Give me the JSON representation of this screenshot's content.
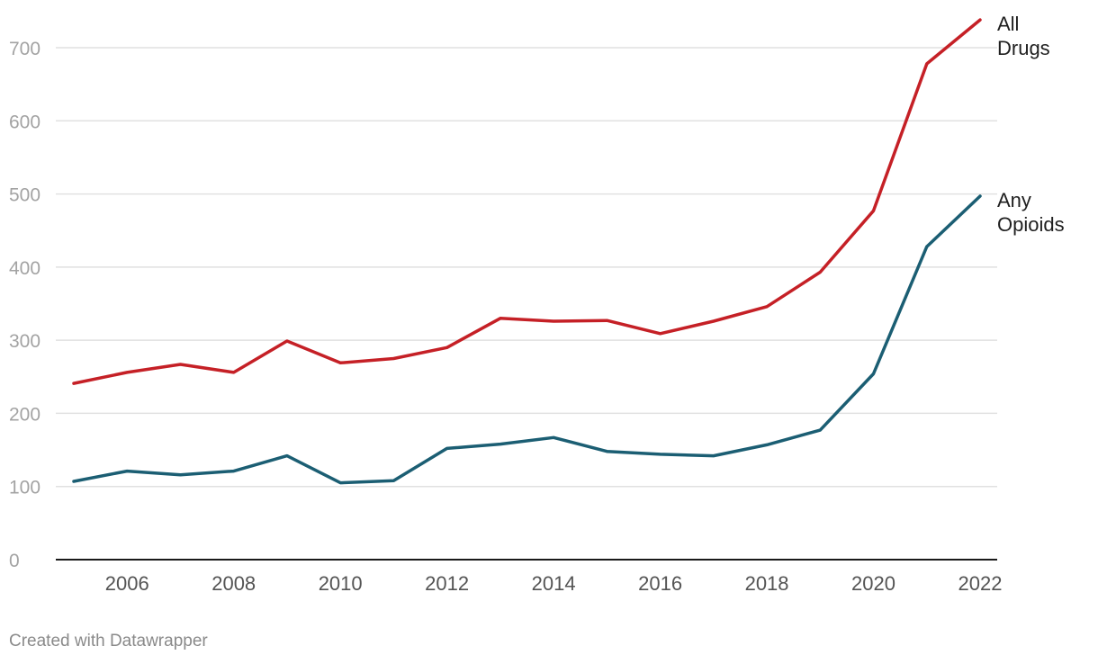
{
  "chart_data": {
    "type": "line",
    "title": "",
    "xlabel": "",
    "ylabel": "",
    "x": [
      2005,
      2006,
      2007,
      2008,
      2009,
      2010,
      2011,
      2012,
      2013,
      2014,
      2015,
      2016,
      2017,
      2018,
      2019,
      2020,
      2021,
      2022
    ],
    "xlim": [
      2005,
      2022
    ],
    "ylim": [
      0,
      700
    ],
    "yticks": [
      "0",
      "100",
      "200",
      "300",
      "400",
      "500",
      "600",
      "700"
    ],
    "xticks": [
      "2006",
      "2008",
      "2010",
      "2012",
      "2014",
      "2016",
      "2018",
      "2020",
      "2022"
    ],
    "grid": true,
    "legend": "direct labels at line ends",
    "series": [
      {
        "name": "All Drugs",
        "label_lines": [
          "All",
          "Drugs"
        ],
        "color": "#c52026",
        "values": [
          241,
          256,
          267,
          256,
          299,
          269,
          275,
          290,
          330,
          326,
          327,
          309,
          326,
          346,
          393,
          477,
          678,
          738
        ]
      },
      {
        "name": "Any Opioids",
        "label_lines": [
          "Any",
          "Opioids"
        ],
        "color": "#1b5e73",
        "values": [
          107,
          121,
          116,
          121,
          142,
          105,
          108,
          152,
          158,
          167,
          148,
          144,
          142,
          157,
          177,
          254,
          428,
          497
        ]
      }
    ]
  },
  "credit": "Created with Datawrapper"
}
